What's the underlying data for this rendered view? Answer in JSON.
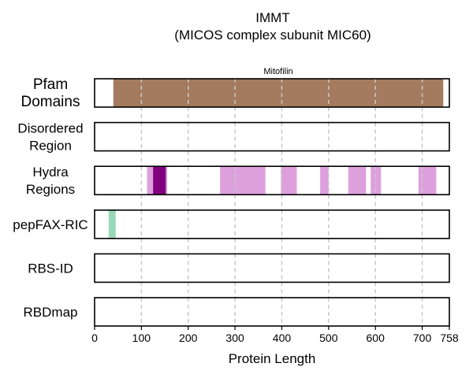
{
  "chart_data": {
    "type": "bar",
    "title": "IMMT",
    "subtitle": "(MICOS complex subunit MIC60)",
    "xlabel": "Protein Length",
    "xlim": [
      0,
      758
    ],
    "x_ticks": [
      0,
      100,
      200,
      300,
      400,
      500,
      600,
      700,
      758
    ],
    "grid": "vertical dashed at ticks",
    "tracks": [
      {
        "name_lines": [
          "Pfam",
          "Domains"
        ],
        "segments": [
          {
            "start": 40,
            "end": 745,
            "color": "#a47b5e",
            "label": "Mitofilin"
          }
        ]
      },
      {
        "name_lines": [
          "Disordered",
          "Region"
        ],
        "segments": []
      },
      {
        "name_lines": [
          "Hydra",
          "Regions"
        ],
        "segments": [
          {
            "start": 112,
            "end": 155,
            "color": "#dda0dd"
          },
          {
            "start": 125,
            "end": 152,
            "color": "#800080"
          },
          {
            "start": 268,
            "end": 305,
            "color": "#dda0dd"
          },
          {
            "start": 305,
            "end": 365,
            "color": "#dda0dd"
          },
          {
            "start": 398,
            "end": 432,
            "color": "#dda0dd"
          },
          {
            "start": 482,
            "end": 500,
            "color": "#dda0dd"
          },
          {
            "start": 542,
            "end": 580,
            "color": "#dda0dd"
          },
          {
            "start": 590,
            "end": 612,
            "color": "#dda0dd"
          },
          {
            "start": 692,
            "end": 730,
            "color": "#dda0dd"
          }
        ]
      },
      {
        "name_lines": [
          "pepFAX-RIC"
        ],
        "segments": [
          {
            "start": 30,
            "end": 45,
            "color": "#98d8b8"
          }
        ]
      },
      {
        "name_lines": [
          "RBS-ID"
        ],
        "segments": []
      },
      {
        "name_lines": [
          "RBDmap"
        ],
        "segments": []
      }
    ]
  }
}
